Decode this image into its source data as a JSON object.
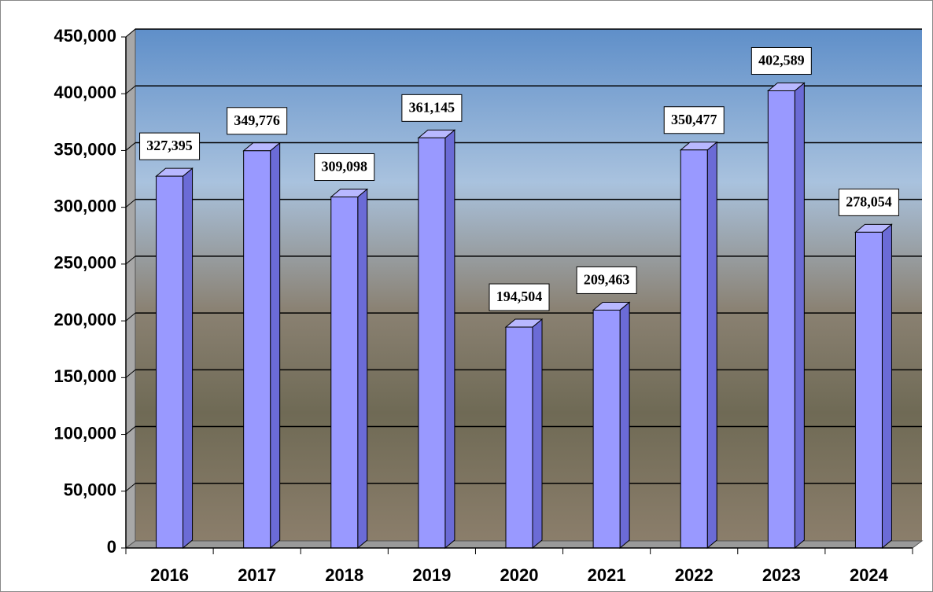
{
  "chart_data": {
    "type": "bar3d",
    "categories": [
      "2016",
      "2017",
      "2018",
      "2019",
      "2020",
      "2021",
      "2022",
      "2023",
      "2024"
    ],
    "values": [
      327395,
      349776,
      309098,
      361145,
      194504,
      209463,
      350477,
      402589,
      278054
    ],
    "value_labels": [
      "327,395",
      "349,776",
      "309,098",
      "361,145",
      "194,504",
      "209,463",
      "350,477",
      "402,589",
      "278,054"
    ],
    "color": "#9999ff",
    "ylim": [
      0,
      450000
    ],
    "yticks": [
      0,
      {
        "value": 50000,
        "label": "50,000"
      },
      {
        "value": 100000,
        "label": "100,000"
      },
      {
        "value": 150000,
        "label": "150,000"
      },
      {
        "value": 200000,
        "label": "200,000"
      },
      {
        "value": 250000,
        "label": "250,000"
      },
      {
        "value": 300000,
        "label": "300,000"
      },
      {
        "value": 350000,
        "label": "350,000"
      },
      {
        "value": 400000,
        "label": "400,000"
      },
      {
        "value": 450000,
        "label": "450,000"
      }
    ],
    "grid": true
  }
}
